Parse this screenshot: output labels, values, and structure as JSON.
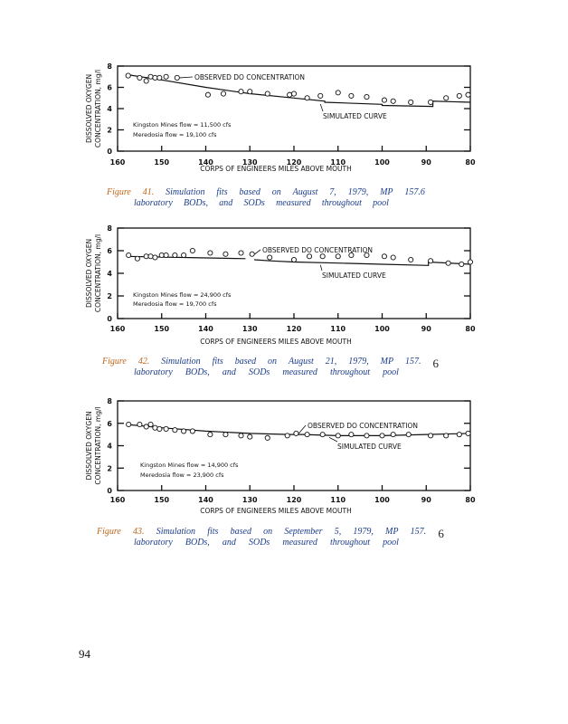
{
  "page_number": "94",
  "chart_data": [
    {
      "type": "scatter+line",
      "ylabel": [
        "DISSOLVED OXYGEN",
        "CONCENTRATION, mg/l"
      ],
      "xlabel": "CORPS OF ENGINEERS MILES ABOVE MOUTH",
      "xlim": [
        160,
        80
      ],
      "ylim": [
        0,
        8
      ],
      "xticks": [
        "160",
        "150",
        "140",
        "130",
        "120",
        "110",
        "100",
        "90",
        "80"
      ],
      "yticks": [
        "0",
        "2",
        "4",
        "6",
        "8"
      ],
      "annotations": {
        "observed": "OBSERVED DO CONCENTRATION",
        "simulated": "SIMULATED CURVE",
        "flow1": "Kingston Mines flow = 11,500 cfs",
        "flow2": "Meredosia flow = 19,100 cfs"
      },
      "observed": [
        [
          157.6,
          7.1
        ],
        [
          155,
          6.9
        ],
        [
          153.5,
          6.6
        ],
        [
          152.5,
          7.0
        ],
        [
          151.5,
          6.9
        ],
        [
          150.5,
          6.9
        ],
        [
          149,
          7.0
        ],
        [
          146.5,
          6.9
        ],
        [
          139.5,
          5.3
        ],
        [
          136,
          5.4
        ],
        [
          132,
          5.6
        ],
        [
          130,
          5.6
        ],
        [
          126,
          5.4
        ],
        [
          121,
          5.3
        ],
        [
          120,
          5.4
        ],
        [
          117,
          5.0
        ],
        [
          114,
          5.2
        ],
        [
          110,
          5.5
        ],
        [
          107,
          5.2
        ],
        [
          103.5,
          5.1
        ],
        [
          99.5,
          4.8
        ],
        [
          97.5,
          4.7
        ],
        [
          93.5,
          4.6
        ],
        [
          89,
          4.6
        ],
        [
          85.5,
          5.0
        ],
        [
          82.5,
          5.2
        ],
        [
          80.5,
          5.3
        ]
      ],
      "simulated": [
        [
          158,
          7.2
        ],
        [
          150,
          6.7
        ],
        [
          140,
          6.0
        ],
        [
          130,
          5.4
        ],
        [
          120,
          5.0
        ],
        [
          113,
          4.7
        ],
        [
          113,
          4.6
        ],
        [
          100,
          4.4
        ],
        [
          100,
          4.3
        ],
        [
          88.5,
          4.2
        ],
        [
          88.5,
          4.7
        ],
        [
          80,
          4.6
        ]
      ],
      "caption": [
        [
          "Figure",
          "41.",
          "Simulation",
          "fits",
          "based",
          "on",
          "August",
          "7,",
          "1979,",
          "MP",
          "157.6"
        ],
        [
          "laboratory",
          "BODs,",
          "and",
          "SODs",
          "measured",
          "throughout",
          "pool"
        ]
      ]
    },
    {
      "type": "scatter+line",
      "ylabel": [
        "DISSOLVED OXYGEN",
        "CONCENTRATION, mg/l"
      ],
      "xlabel": "CORPS OF ENGINEERS MILES ABOVE MOUTH",
      "xlim": [
        160,
        80
      ],
      "ylim": [
        0,
        8
      ],
      "xticks": [
        "160",
        "150",
        "140",
        "130",
        "120",
        "110",
        "100",
        "90",
        "80"
      ],
      "yticks": [
        "0",
        "2",
        "4",
        "6",
        "8"
      ],
      "annotations": {
        "observed": "OBSERVED DO CONCENTRATION",
        "simulated": "SIMULATED CURVE",
        "flow1": "Kingston Mines flow = 24,900 cfs",
        "flow2": "Meredosia flow = 19,700 cfs"
      },
      "observed": [
        [
          157.5,
          5.6
        ],
        [
          155.5,
          5.3
        ],
        [
          153.5,
          5.5
        ],
        [
          152.5,
          5.5
        ],
        [
          151.5,
          5.4
        ],
        [
          150,
          5.6
        ],
        [
          149,
          5.6
        ],
        [
          147,
          5.6
        ],
        [
          145,
          5.6
        ],
        [
          143,
          6.0
        ],
        [
          139,
          5.8
        ],
        [
          135.5,
          5.7
        ],
        [
          132,
          5.8
        ],
        [
          129.5,
          5.7
        ],
        [
          125.5,
          5.4
        ],
        [
          120,
          5.2
        ],
        [
          116.5,
          5.5
        ],
        [
          113.5,
          5.5
        ],
        [
          110,
          5.5
        ],
        [
          107,
          5.6
        ],
        [
          103.5,
          5.6
        ],
        [
          99.5,
          5.5
        ],
        [
          97.5,
          5.4
        ],
        [
          93.5,
          5.2
        ],
        [
          89,
          5.1
        ],
        [
          85,
          4.9
        ],
        [
          82,
          4.8
        ],
        [
          80,
          5.0
        ]
      ],
      "simulated": [
        [
          158,
          5.5
        ],
        [
          145,
          5.4
        ],
        [
          131,
          5.3
        ],
        [
          null,
          null
        ],
        [
          129,
          5.2
        ],
        [
          125,
          5.1
        ],
        [
          120,
          5.0
        ],
        [
          110,
          4.9
        ],
        [
          100,
          4.8
        ],
        [
          89.5,
          4.7
        ],
        [
          89.5,
          5.0
        ],
        [
          80,
          4.8
        ]
      ],
      "caption": [
        [
          "Figure",
          "42.",
          "Simulation",
          "fits",
          "based",
          "on",
          "August",
          "21,",
          "1979,",
          "MP",
          "157.",
          "6"
        ],
        [
          "laboratory",
          "BODs,",
          "and",
          "SODs",
          "measured",
          "throughout",
          "pool"
        ]
      ]
    },
    {
      "type": "scatter+line",
      "ylabel": [
        "DISSOLVED OXYGEN",
        "CONCENTRATION, mg/l"
      ],
      "xlabel": "CORPS OF ENGINEERS MILES ABOVE MOUTH",
      "xlim": [
        160,
        80
      ],
      "ylim": [
        0,
        8
      ],
      "xticks": [
        "160",
        "150",
        "140",
        "130",
        "120",
        "110",
        "100",
        "90",
        "80"
      ],
      "yticks": [
        "0",
        "2",
        "4",
        "6",
        "8"
      ],
      "annotations": {
        "observed": "OBSERVED DO CONCENTRATION",
        "simulated": "SIMULATED CURVE",
        "flow1": "Kingston Mines flow = 14,900 cfs",
        "flow2": "Meredosia flow = 23,900 cfs"
      },
      "observed": [
        [
          157.5,
          5.9
        ],
        [
          155,
          5.9
        ],
        [
          153.5,
          5.7
        ],
        [
          152.5,
          5.9
        ],
        [
          151.5,
          5.6
        ],
        [
          150.5,
          5.5
        ],
        [
          149,
          5.5
        ],
        [
          147,
          5.4
        ],
        [
          145,
          5.3
        ],
        [
          143,
          5.3
        ],
        [
          139,
          5.0
        ],
        [
          135.5,
          5.0
        ],
        [
          132,
          4.9
        ],
        [
          130,
          4.8
        ],
        [
          126,
          4.7
        ],
        [
          121.5,
          4.9
        ],
        [
          119.5,
          5.1
        ],
        [
          117,
          5.0
        ],
        [
          113.5,
          5.0
        ],
        [
          110,
          4.9
        ],
        [
          107,
          5.0
        ],
        [
          103.5,
          4.9
        ],
        [
          100,
          4.9
        ],
        [
          97.5,
          5.0
        ],
        [
          94,
          5.0
        ],
        [
          89,
          4.9
        ],
        [
          85.5,
          4.9
        ],
        [
          82.5,
          5.0
        ],
        [
          80.5,
          5.1
        ]
      ],
      "simulated": [
        [
          158,
          5.9
        ],
        [
          150,
          5.6
        ],
        [
          140,
          5.3
        ],
        [
          130,
          5.1
        ],
        [
          121,
          5.0
        ],
        [
          118,
          5.0
        ],
        [
          110,
          4.9
        ],
        [
          100,
          4.9
        ],
        [
          90,
          5.0
        ],
        [
          80,
          5.1
        ]
      ],
      "caption": [
        [
          "Figure",
          "43.",
          "Simulation",
          "fits",
          "based",
          "on",
          "September",
          "5,",
          "1979,",
          "MP",
          "157.",
          "6"
        ],
        [
          "laboratory",
          "BODs,",
          "and",
          "SODs",
          "measured",
          "throughout",
          "pool"
        ]
      ]
    }
  ]
}
